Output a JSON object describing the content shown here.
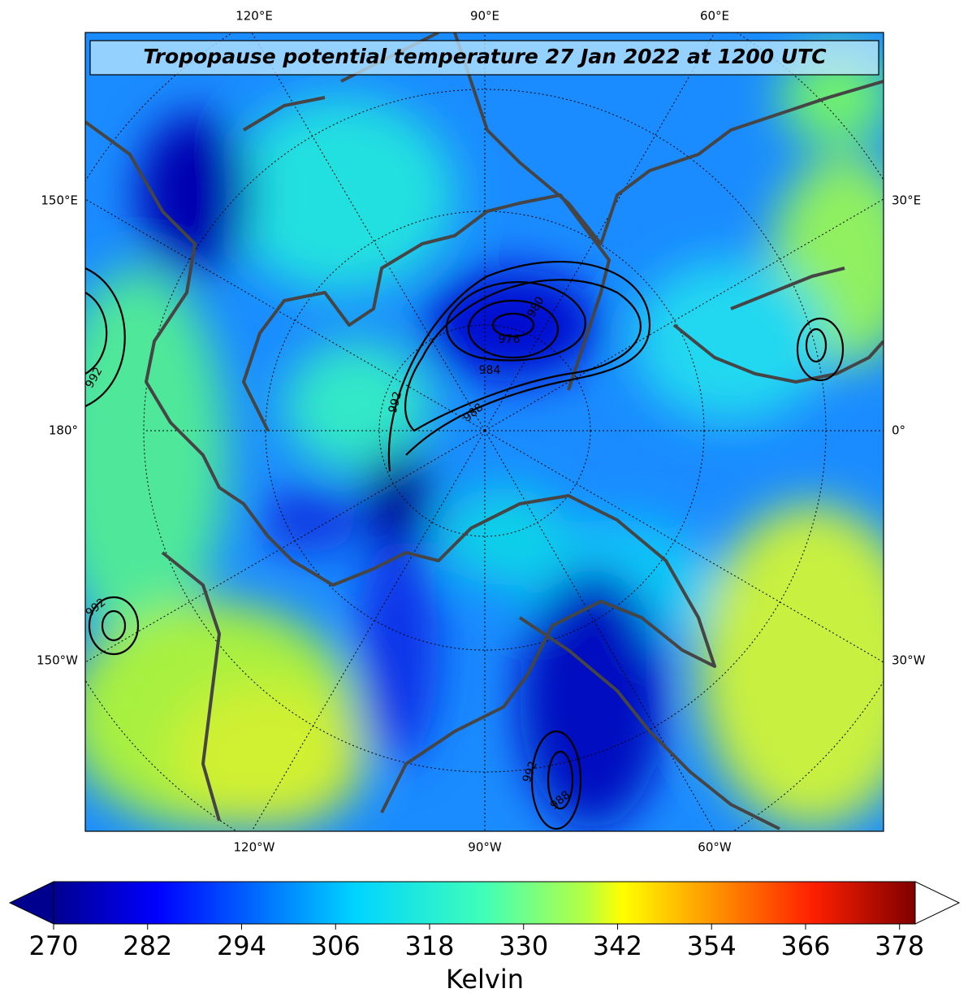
{
  "title": "Tropopause potential temperature 27 Jan 2022 at 1200 UTC",
  "map": {
    "top_labels": [
      "120°E",
      "90°E",
      "60°E"
    ],
    "bottom_labels": [
      "120°W",
      "90°W",
      "60°W"
    ],
    "left_labels": [
      "150°E",
      "180°",
      "150°W"
    ],
    "right_labels": [
      "30°E",
      "0°",
      "30°W"
    ],
    "contour_labels": [
      992,
      980,
      976,
      984,
      992,
      988,
      992,
      992,
      988
    ]
  },
  "colorbar": {
    "label": "Kelvin",
    "lim": [
      270,
      380
    ],
    "ticks": [
      270,
      282,
      294,
      306,
      318,
      330,
      342,
      354,
      366,
      378
    ]
  }
}
